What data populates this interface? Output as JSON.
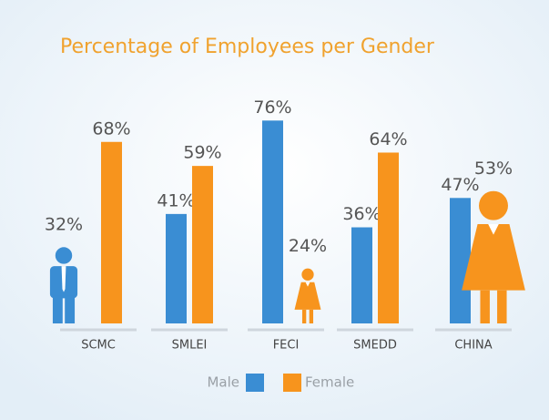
{
  "chart_data": {
    "type": "bar",
    "title": "Percentage of Employees per Gender",
    "categories": [
      "SCMC",
      "SMLEI",
      "FECI",
      "SMEDD",
      "CHINA"
    ],
    "series": [
      {
        "name": "Male",
        "color": "#3a8dd3",
        "values": [
          32,
          41,
          76,
          36,
          47
        ],
        "value_labels": [
          "32%",
          "41%",
          "76%",
          "36%",
          "47%"
        ]
      },
      {
        "name": "Female",
        "color": "#f7941d",
        "values": [
          68,
          59,
          24,
          64,
          53
        ],
        "value_labels": [
          "68%",
          "59%",
          "24%",
          "64%",
          "53%"
        ]
      }
    ],
    "ylim": [
      0,
      100
    ],
    "legend": "bottom"
  }
}
